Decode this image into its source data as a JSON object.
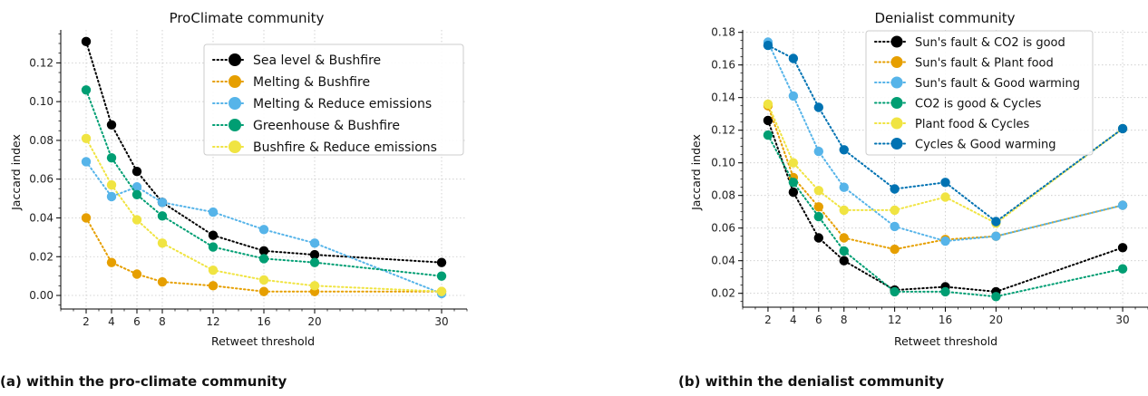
{
  "chart_data": [
    {
      "type": "line",
      "title": "ProClimate community",
      "xlabel": "Retweet threshold",
      "ylabel": "Jaccard index",
      "x": [
        2,
        4,
        6,
        8,
        12,
        16,
        20,
        30
      ],
      "xticks": [
        "2",
        "4",
        "6",
        "8",
        "12",
        "16",
        "20",
        "30"
      ],
      "xlim": [
        0,
        32
      ],
      "ylim": [
        -0.007,
        0.137
      ],
      "yticks": [
        "0.00",
        "0.02",
        "0.04",
        "0.06",
        "0.08",
        "0.10",
        "0.12"
      ],
      "ytick_values": [
        0.0,
        0.02,
        0.04,
        0.06,
        0.08,
        0.1,
        0.12
      ],
      "grid": true,
      "legend_placement": "top-right",
      "series": [
        {
          "name": "Sea level & Bushfire",
          "color": "#000000",
          "values": [
            0.131,
            0.088,
            0.064,
            0.048,
            0.031,
            0.023,
            0.021,
            0.017
          ]
        },
        {
          "name": "Melting & Bushfire",
          "color": "#E69F00",
          "values": [
            0.04,
            0.017,
            0.011,
            0.007,
            0.005,
            0.002,
            0.002,
            0.002
          ]
        },
        {
          "name": "Melting & Reduce emissions",
          "color": "#56B4E9",
          "values": [
            0.069,
            0.051,
            0.056,
            0.048,
            0.043,
            0.034,
            0.027,
            0.001
          ]
        },
        {
          "name": "Greenhouse & Bushfire",
          "color": "#009E73",
          "values": [
            0.106,
            0.071,
            0.052,
            0.041,
            0.025,
            0.019,
            0.017,
            0.01
          ]
        },
        {
          "name": "Bushfire & Reduce emissions",
          "color": "#F0E442",
          "values": [
            0.081,
            0.057,
            0.039,
            0.027,
            0.013,
            0.008,
            0.005,
            0.002
          ]
        }
      ]
    },
    {
      "type": "line",
      "title": "Denialist community",
      "xlabel": "Retweet threshold",
      "ylabel": "Jaccard index",
      "x": [
        2,
        4,
        6,
        8,
        12,
        16,
        20,
        30
      ],
      "xticks": [
        "2",
        "4",
        "6",
        "8",
        "12",
        "16",
        "20",
        "30"
      ],
      "xlim": [
        0,
        32
      ],
      "ylim": [
        0.0115,
        0.1815
      ],
      "yticks": [
        "0.02",
        "0.04",
        "0.06",
        "0.08",
        "0.10",
        "0.12",
        "0.14",
        "0.16",
        "0.18"
      ],
      "ytick_values": [
        0.02,
        0.04,
        0.06,
        0.08,
        0.1,
        0.12,
        0.14,
        0.16,
        0.18
      ],
      "grid": true,
      "legend_placement": "top-right",
      "series": [
        {
          "name": "Sun's fault & CO2 is good",
          "color": "#000000",
          "values": [
            0.126,
            0.082,
            0.054,
            0.04,
            0.022,
            0.024,
            0.021,
            0.048
          ]
        },
        {
          "name": "Sun's fault & Plant food",
          "color": "#E69F00",
          "values": [
            0.135,
            0.091,
            0.073,
            0.054,
            0.047,
            0.053,
            0.055,
            0.074
          ]
        },
        {
          "name": "Sun's fault & Good warming",
          "color": "#56B4E9",
          "values": [
            0.174,
            0.141,
            0.107,
            0.085,
            0.061,
            0.052,
            0.055,
            0.074
          ]
        },
        {
          "name": "CO2 is good & Cycles",
          "color": "#009E73",
          "values": [
            0.117,
            0.088,
            0.067,
            0.046,
            0.021,
            0.021,
            0.018,
            0.035
          ]
        },
        {
          "name": "Plant food & Cycles",
          "color": "#F0E442",
          "values": [
            0.136,
            0.1,
            0.083,
            0.071,
            0.071,
            0.079,
            0.063,
            0.121
          ]
        },
        {
          "name": "Cycles & Good warming",
          "color": "#0072B2",
          "values": [
            0.172,
            0.164,
            0.134,
            0.108,
            0.084,
            0.088,
            0.064,
            0.121
          ]
        }
      ]
    }
  ],
  "captions": {
    "a": "(a) within the pro-climate community",
    "b": "(b) within the denialist community"
  }
}
